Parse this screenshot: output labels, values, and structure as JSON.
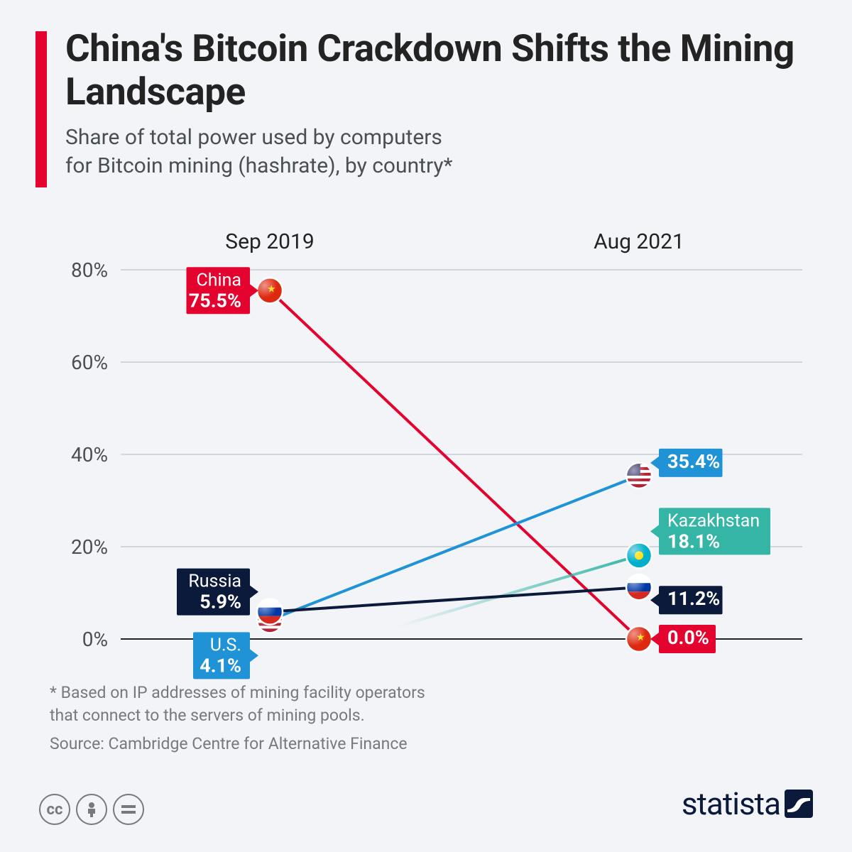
{
  "header": {
    "title": "China's Bitcoin Crackdown Shifts the Mining Landscape",
    "subtitle_l1": "Share of total power used by computers",
    "subtitle_l2": "for Bitcoin mining (hashrate), by country*",
    "accent_color": "#e4032e"
  },
  "chart": {
    "type": "slope",
    "background_color": "#f2f4f8",
    "grid_color": "#c6cbd2",
    "baseline_color": "#232323",
    "line_width": 4,
    "marker_radius": 18,
    "columns": [
      {
        "key": "t0",
        "label": "Sep 2019"
      },
      {
        "key": "t1",
        "label": "Aug 2021"
      }
    ],
    "y_axis": {
      "min": 0,
      "max": 80,
      "tick_step": 20,
      "suffix": "%",
      "tick_fontsize": 28,
      "tick_color": "#4a4f55"
    },
    "series": [
      {
        "id": "china",
        "name": "China",
        "color": "#e4032e",
        "t0": 75.5,
        "t1": 0.0,
        "flag": "cn",
        "labels": [
          {
            "at": "t0",
            "side": "left",
            "show_name": true
          },
          {
            "at": "t1",
            "side": "right",
            "show_name": false
          }
        ]
      },
      {
        "id": "us",
        "name": "U.S.",
        "color": "#2093d6",
        "t0": 4.1,
        "t1": 35.4,
        "flag": "us",
        "labels": [
          {
            "at": "t0",
            "side": "left",
            "show_name": true,
            "y_offset": 50
          },
          {
            "at": "t1",
            "side": "right",
            "show_name": false,
            "y_offset": -18
          }
        ]
      },
      {
        "id": "kazakhstan",
        "name": "Kazakhstan",
        "color": "#35b5a5",
        "t0": null,
        "t1": 18.1,
        "flag": "kz",
        "fade_in": true,
        "labels": [
          {
            "at": "t1",
            "side": "right",
            "show_name": true,
            "y_offset": -34
          }
        ]
      },
      {
        "id": "russia",
        "name": "Russia",
        "color": "#0b1a3a",
        "t0": 5.9,
        "t1": 11.2,
        "flag": "ru",
        "labels": [
          {
            "at": "t0",
            "side": "left",
            "show_name": true,
            "y_offset": -28
          },
          {
            "at": "t1",
            "side": "right",
            "show_name": false,
            "y_offset": 18
          }
        ]
      }
    ]
  },
  "footnote_l1": "* Based on IP addresses of mining facility operators",
  "footnote_l2": "  that connect to the servers of mining pools.",
  "source": "Source: Cambridge Centre for Alternative Finance",
  "brand": "statista"
}
